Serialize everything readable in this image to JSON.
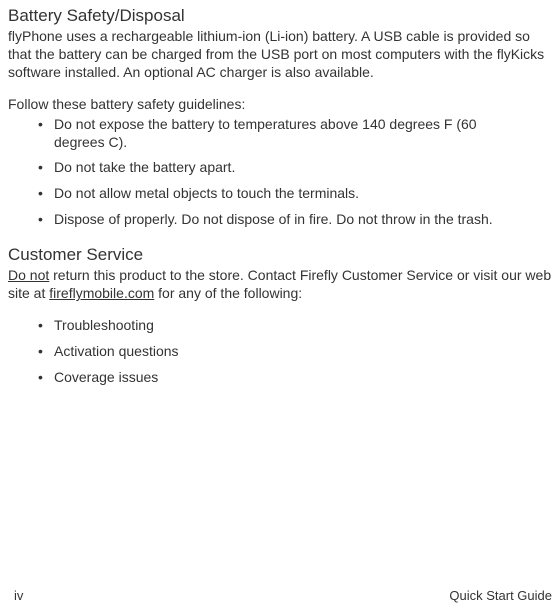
{
  "section1": {
    "heading": "Battery Safety/Disposal",
    "intro": "flyPhone uses a rechargeable lithium-ion (Li-ion) battery. A USB cable is provided so that the battery can be charged from the USB port on most computers with the flyKicks software installed. An optional AC charger is also available.",
    "guidelines_lead": "Follow these battery safety guidelines:",
    "items": [
      "Do not expose the battery to temperatures above 140 degrees F (60 degrees C).",
      "Do not take the battery apart.",
      "Do not allow metal objects to touch the terminals.",
      "Dispose of properly. Do not dispose of in fire. Do not throw in the trash."
    ]
  },
  "section2": {
    "heading": "Customer Service",
    "intro_pre_underline": "Do not",
    "intro_mid": " return this product to the store. Contact Firefly Customer Service or visit our web site at ",
    "intro_link": "fireflymobile.com",
    "intro_post": " for any of the following:",
    "items": [
      "Troubleshooting",
      "Activation questions",
      "Coverage issues"
    ]
  },
  "footer": {
    "page": "iv",
    "doc": "Quick Start Guide"
  }
}
